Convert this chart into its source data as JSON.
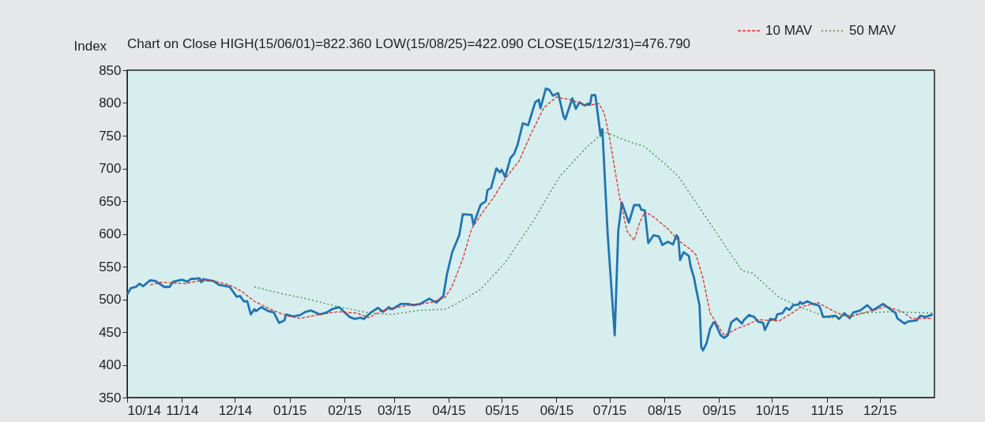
{
  "chart_data": {
    "type": "line",
    "title": "Chart on Close   HIGH(15/06/01)=822.360   LOW(15/08/25)=422.090   CLOSE(15/12/31)=476.790",
    "ylabel": "Index",
    "xlim": [
      "2014-10-01",
      "2016-01-01"
    ],
    "xticks": [
      {
        "value": "2014-10",
        "label": "10/14"
      },
      {
        "value": "2014-11",
        "label": "11/14"
      },
      {
        "value": "2014-12",
        "label": "12/14"
      },
      {
        "value": "2015-01",
        "label": "01/15"
      },
      {
        "value": "2015-02",
        "label": "02/15"
      },
      {
        "value": "2015-03",
        "label": "03/15"
      },
      {
        "value": "2015-04",
        "label": "04/15"
      },
      {
        "value": "2015-05",
        "label": "05/15"
      },
      {
        "value": "2015-06",
        "label": "06/15"
      },
      {
        "value": "2015-07",
        "label": "07/15"
      },
      {
        "value": "2015-08",
        "label": "08/15"
      },
      {
        "value": "2015-09",
        "label": "09/15"
      },
      {
        "value": "2015-10",
        "label": "10/15"
      },
      {
        "value": "2015-11",
        "label": "11/15"
      },
      {
        "value": "2015-12",
        "label": "12/15"
      }
    ],
    "ylim": [
      350,
      850
    ],
    "yticks": [
      350,
      400,
      450,
      500,
      550,
      600,
      650,
      700,
      750,
      800,
      850
    ],
    "grid": false,
    "legend": "top right",
    "marker": "none",
    "series": [
      {
        "color": "#2274b0",
        "line_style": "solid",
        "x": [
          "2014-10-01",
          "2014-10-03",
          "2014-10-06",
          "2014-10-08",
          "2014-10-10",
          "2014-10-14",
          "2014-10-17",
          "2014-10-22",
          "2014-10-25",
          "2014-10-27",
          "2014-11-01",
          "2014-11-04",
          "2014-11-06",
          "2014-11-11",
          "2014-11-12",
          "2014-11-13",
          "2014-11-19",
          "2014-11-22",
          "2014-11-28",
          "2014-12-02",
          "2014-12-04",
          "2014-12-06",
          "2014-12-08",
          "2014-12-10",
          "2014-12-12",
          "2014-12-13",
          "2014-12-16",
          "2014-12-20",
          "2014-12-23",
          "2014-12-26",
          "2014-12-29",
          "2014-12-30",
          "2015-01-03",
          "2015-01-07",
          "2015-01-10",
          "2015-01-13",
          "2015-01-18",
          "2015-01-22",
          "2015-01-25",
          "2015-01-29",
          "2015-02-02",
          "2015-02-04",
          "2015-02-07",
          "2015-02-10",
          "2015-02-12",
          "2015-02-16",
          "2015-02-20",
          "2015-02-23",
          "2015-02-26",
          "2015-02-28",
          "2015-03-05",
          "2015-03-09",
          "2015-03-12",
          "2015-03-16",
          "2015-03-21",
          "2015-03-25",
          "2015-03-29",
          "2015-03-31",
          "2015-04-03",
          "2015-04-07",
          "2015-04-09",
          "2015-04-14",
          "2015-04-15",
          "2015-04-19",
          "2015-04-22",
          "2015-04-23",
          "2015-04-25",
          "2015-04-28",
          "2015-04-30",
          "2015-05-01",
          "2015-05-03",
          "2015-05-06",
          "2015-05-08",
          "2015-05-10",
          "2015-05-13",
          "2015-05-16",
          "2015-05-20",
          "2015-05-22",
          "2015-05-23",
          "2015-05-26",
          "2015-05-28",
          "2015-05-30",
          "2015-06-02",
          "2015-06-05",
          "2015-06-06",
          "2015-06-10",
          "2015-06-12",
          "2015-06-14",
          "2015-06-17",
          "2015-06-19",
          "2015-06-20",
          "2015-06-21",
          "2015-06-23",
          "2015-06-26",
          "2015-06-27",
          "2015-06-30",
          "2015-07-04",
          "2015-07-06",
          "2015-07-08",
          "2015-07-12",
          "2015-07-15",
          "2015-07-18",
          "2015-07-19",
          "2015-07-21",
          "2015-07-23",
          "2015-07-26",
          "2015-07-29",
          "2015-07-31",
          "2015-08-03",
          "2015-08-06",
          "2015-08-08",
          "2015-08-09",
          "2015-08-10",
          "2015-08-12",
          "2015-08-15",
          "2015-08-16",
          "2015-08-18",
          "2015-08-19",
          "2015-08-21",
          "2015-08-22",
          "2015-08-23",
          "2015-08-25",
          "2015-08-27",
          "2015-08-29",
          "2015-08-30",
          "2015-09-02",
          "2015-09-04",
          "2015-09-06",
          "2015-09-08",
          "2015-09-11",
          "2015-09-14",
          "2015-09-15",
          "2015-09-18",
          "2015-09-21",
          "2015-09-23",
          "2015-09-26",
          "2015-09-27",
          "2015-09-30",
          "2015-10-03",
          "2015-10-04",
          "2015-10-07",
          "2015-10-09",
          "2015-10-11",
          "2015-10-13",
          "2015-10-16",
          "2015-10-17",
          "2015-10-18",
          "2015-10-21",
          "2015-10-24",
          "2015-10-27",
          "2015-10-28",
          "2015-10-30",
          "2015-11-03",
          "2015-11-06",
          "2015-11-08",
          "2015-11-11",
          "2015-11-14",
          "2015-11-16",
          "2015-11-20",
          "2015-11-24",
          "2015-11-27",
          "2015-12-03",
          "2015-12-06",
          "2015-12-10",
          "2015-12-11",
          "2015-12-15",
          "2015-12-17",
          "2015-12-22",
          "2015-12-24",
          "2015-12-27",
          "2015-12-31"
        ],
        "values": [
          507,
          517,
          519,
          524,
          520,
          529,
          528,
          519,
          519,
          527,
          530,
          527,
          531,
          532,
          526,
          531,
          528,
          522,
          519,
          504,
          505,
          497,
          497,
          477,
          485,
          482,
          488,
          482,
          480,
          464,
          468,
          477,
          474,
          476,
          481,
          483,
          477,
          480,
          485,
          488,
          478,
          473,
          470,
          472,
          470,
          480,
          487,
          481,
          488,
          485,
          493,
          493,
          491,
          493,
          501,
          495,
          505,
          538,
          572,
          598,
          630,
          629,
          614,
          644,
          650,
          667,
          670,
          700,
          694,
          698,
          687,
          716,
          722,
          736,
          769,
          766,
          801,
          805,
          792,
          822,
          820,
          811,
          815,
          780,
          775,
          807,
          791,
          801,
          796,
          799,
          797,
          812,
          812,
          750,
          760,
          600,
          445,
          604,
          648,
          617,
          644,
          644,
          637,
          636,
          586,
          598,
          596,
          583,
          588,
          584,
          598,
          594,
          560,
          572,
          566,
          550,
          532,
          517,
          491,
          427,
          422,
          433,
          455,
          465,
          463,
          445,
          441,
          445,
          465,
          471,
          463,
          468,
          476,
          473,
          466,
          464,
          453,
          470,
          469,
          477,
          479,
          487,
          484,
          491,
          492,
          496,
          493,
          497,
          493,
          491,
          489,
          473,
          474,
          475,
          470,
          479,
          471,
          480,
          483,
          491,
          483,
          493,
          487,
          479,
          471,
          463,
          466,
          468,
          475,
          473,
          477
        ]
      },
      {
        "name": "10 MAV",
        "color": "#d9302c",
        "line_style": "dashed",
        "x": [
          "2014-10-14",
          "2014-10-20",
          "2014-11-03",
          "2014-11-10",
          "2014-11-19",
          "2014-11-28",
          "2014-12-05",
          "2014-12-12",
          "2014-12-21",
          "2014-12-30",
          "2015-01-07",
          "2015-01-18",
          "2015-01-28",
          "2015-02-08",
          "2015-02-15",
          "2015-02-21",
          "2015-03-02",
          "2015-03-11",
          "2015-03-22",
          "2015-03-30",
          "2015-04-03",
          "2015-04-09",
          "2015-04-14",
          "2015-04-20",
          "2015-04-26",
          "2015-05-03",
          "2015-05-11",
          "2015-05-18",
          "2015-05-25",
          "2015-06-01",
          "2015-06-09",
          "2015-06-18",
          "2015-06-25",
          "2015-06-28",
          "2015-07-01",
          "2015-07-04",
          "2015-07-07",
          "2015-07-11",
          "2015-07-15",
          "2015-07-18",
          "2015-07-21",
          "2015-07-26",
          "2015-08-03",
          "2015-08-09",
          "2015-08-16",
          "2015-08-19",
          "2015-08-23",
          "2015-08-27",
          "2015-09-04",
          "2015-09-11",
          "2015-09-17",
          "2015-09-23",
          "2015-10-05",
          "2015-10-10",
          "2015-10-18",
          "2015-10-27",
          "2015-11-07",
          "2015-11-14",
          "2015-11-24",
          "2015-12-05",
          "2015-12-14",
          "2015-12-19",
          "2015-12-31"
        ],
        "values": [
          522,
          526,
          524,
          528,
          528,
          522,
          512,
          497,
          485,
          475,
          471,
          477,
          481,
          479,
          472,
          481,
          487,
          492,
          495,
          503,
          520,
          562,
          608,
          632,
          654,
          684,
          712,
          755,
          793,
          809,
          805,
          796,
          799,
          785,
          748,
          700,
          652,
          604,
          590,
          616,
          634,
          626,
          608,
          590,
          576,
          568,
          532,
          479,
          445,
          455,
          461,
          469,
          467,
          475,
          489,
          495,
          479,
          473,
          481,
          489,
          481,
          471,
          471
        ]
      },
      {
        "name": "50 MAV",
        "color": "#3f8a45",
        "line_style": "dotted",
        "x": [
          "2014-12-12",
          "2014-12-27",
          "2015-01-12",
          "2015-01-28",
          "2015-02-15",
          "2015-02-28",
          "2015-03-15",
          "2015-03-30",
          "2015-04-04",
          "2015-04-19",
          "2015-05-03",
          "2015-05-18",
          "2015-06-03",
          "2015-06-18",
          "2015-06-28",
          "2015-07-09",
          "2015-07-21",
          "2015-08-01",
          "2015-08-09",
          "2015-08-24",
          "2015-09-05",
          "2015-09-14",
          "2015-09-20",
          "2015-10-05",
          "2015-10-18",
          "2015-11-03",
          "2015-11-21",
          "2015-12-06",
          "2015-12-31"
        ],
        "values": [
          519,
          509,
          500,
          489,
          479,
          477,
          483,
          485,
          491,
          515,
          556,
          616,
          688,
          732,
          756,
          744,
          733,
          708,
          688,
          628,
          580,
          544,
          540,
          503,
          487,
          471,
          479,
          481,
          479
        ]
      }
    ]
  }
}
